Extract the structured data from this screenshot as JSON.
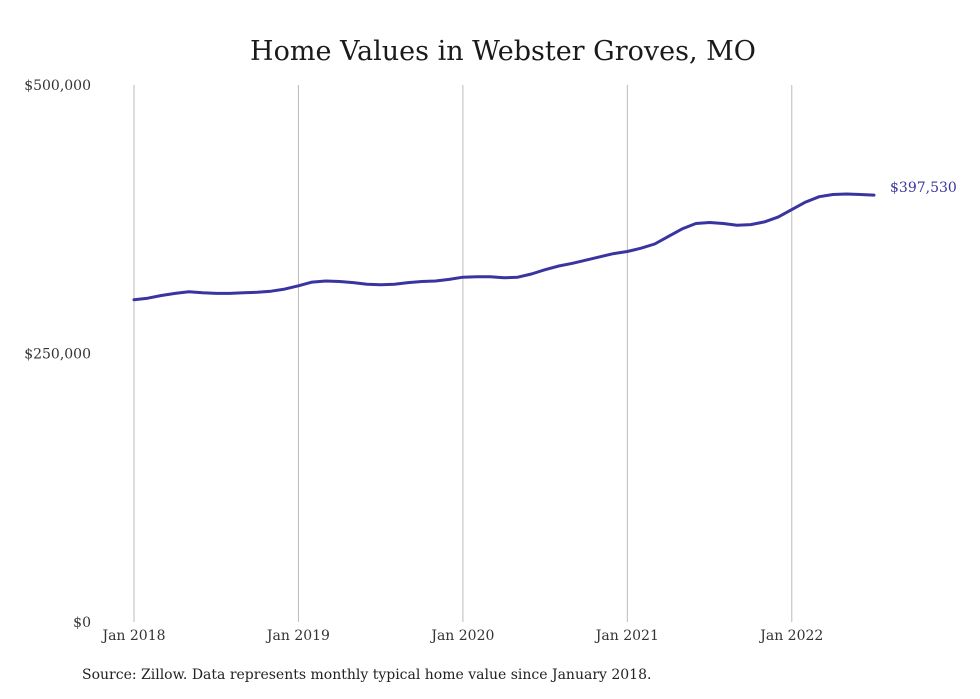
{
  "chart_data": {
    "type": "line",
    "title": "Home Values in Webster Groves, MO",
    "xlabel": "",
    "ylabel": "",
    "ylim": [
      0,
      500000
    ],
    "ytick_values": [
      0,
      250000,
      500000
    ],
    "ytick_labels": [
      "$0",
      "$250,000",
      "$500,000"
    ],
    "xlim": [
      "2018-01",
      "2022-07"
    ],
    "xtick_values": [
      "2018-01",
      "2019-01",
      "2020-01",
      "2021-01",
      "2022-01"
    ],
    "xtick_labels": [
      "Jan 2018",
      "Jan 2019",
      "Jan 2020",
      "Jan 2021",
      "Jan 2022"
    ],
    "grid": "vertical lines at year ticks",
    "line_color": "#3a34a0",
    "grid_color": "#bbbbbb",
    "end_label": "$397,530",
    "series": [
      {
        "x": [
          "2018-01",
          "2018-02",
          "2018-03",
          "2018-04",
          "2018-05",
          "2018-06",
          "2018-07",
          "2018-08",
          "2018-09",
          "2018-10",
          "2018-11",
          "2018-12",
          "2019-01",
          "2019-02",
          "2019-03",
          "2019-04",
          "2019-05",
          "2019-06",
          "2019-07",
          "2019-08",
          "2019-09",
          "2019-10",
          "2019-11",
          "2019-12",
          "2020-01",
          "2020-02",
          "2020-03",
          "2020-04",
          "2020-05",
          "2020-06",
          "2020-07",
          "2020-08",
          "2020-09",
          "2020-10",
          "2020-11",
          "2020-12",
          "2021-01",
          "2021-02",
          "2021-03",
          "2021-04",
          "2021-05",
          "2021-06",
          "2021-07",
          "2021-08",
          "2021-09",
          "2021-10",
          "2021-11",
          "2021-12",
          "2022-01",
          "2022-02",
          "2022-03",
          "2022-04",
          "2022-05",
          "2022-06",
          "2022-07"
        ],
        "values": [
          300000,
          301500,
          304000,
          306000,
          307500,
          306500,
          306000,
          306000,
          306500,
          307000,
          308000,
          310000,
          313000,
          316500,
          317500,
          317000,
          316000,
          314500,
          314000,
          314500,
          316000,
          317000,
          317500,
          319000,
          321000,
          321500,
          321500,
          320500,
          321000,
          324000,
          328000,
          331500,
          334000,
          337000,
          340000,
          343000,
          345000,
          348000,
          352000,
          359000,
          366000,
          371000,
          372000,
          371000,
          369500,
          370000,
          372500,
          377000,
          384000,
          391000,
          396000,
          398000,
          398500,
          398000,
          397530
        ]
      }
    ],
    "source_note": "Source: Zillow. Data represents monthly typical home value since January 2018."
  }
}
